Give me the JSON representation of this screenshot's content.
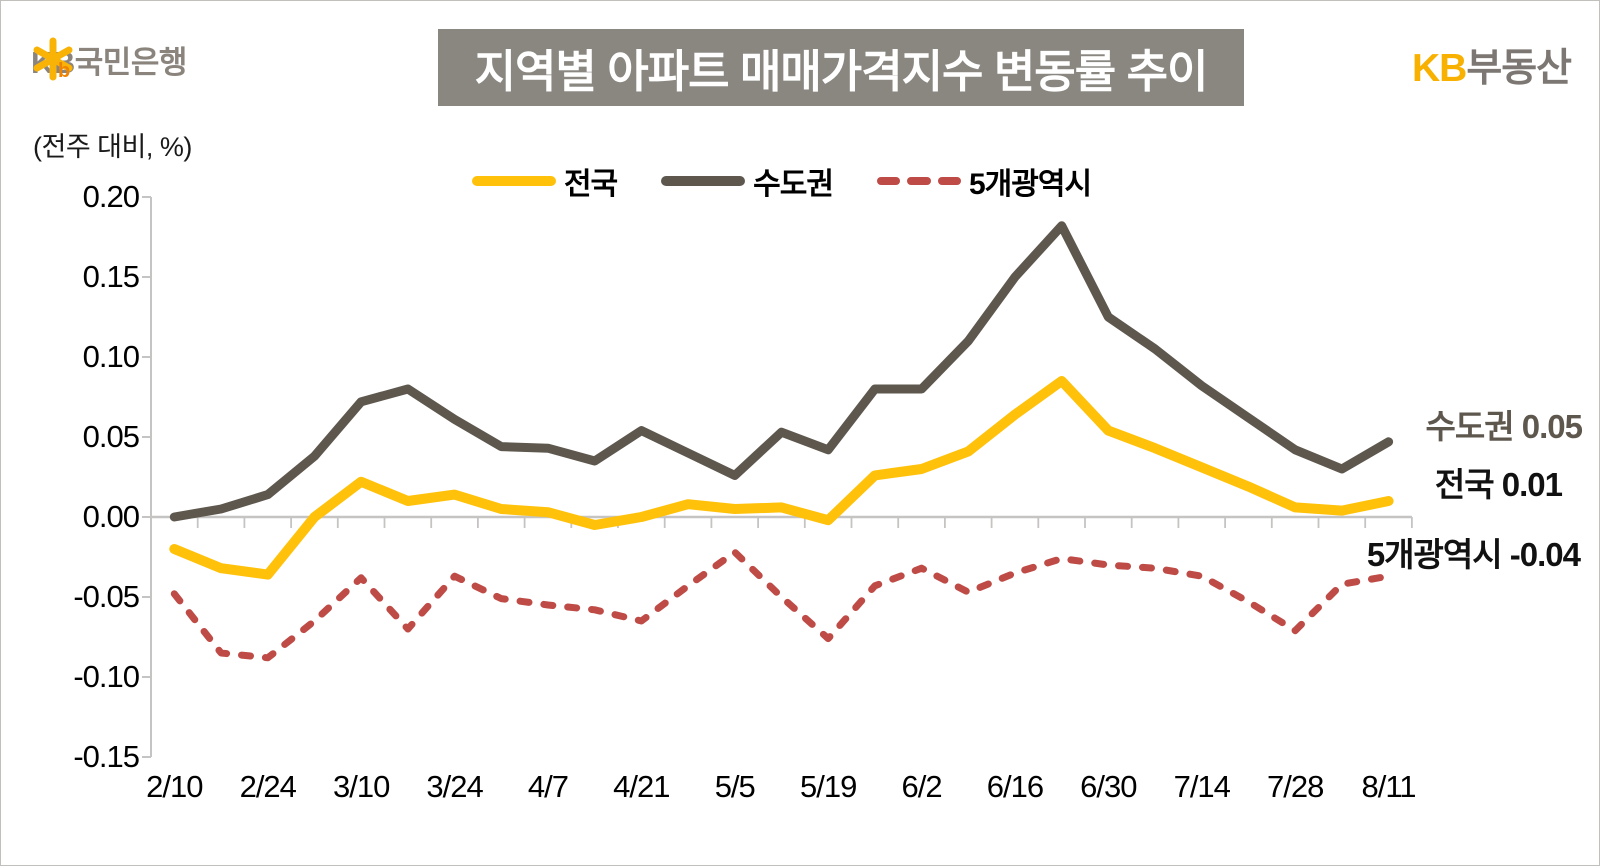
{
  "page": {
    "background": "#ffffff",
    "border_color": "#c2c0bd"
  },
  "header": {
    "bank_logo": {
      "icon": "kb-star-icon",
      "star_color": "#f9b306",
      "b_color": "#ef8200",
      "text": "KB국민은행",
      "text_color": "#8a847d"
    },
    "title": {
      "text": "지역별 아파트 매매가격지수 변동률 추이",
      "bg": "#8a8680",
      "color": "#ffffff"
    },
    "brand_logo": {
      "kb_text": "KB",
      "kb_color": "#f8b100",
      "suffix_text": "부동산",
      "suffix_color": "#7c7772"
    }
  },
  "chart": {
    "unit_label": "(전주 대비, %)",
    "axis_color": "#c6c4c2",
    "legend": [
      {
        "label": "전국",
        "color": "#ffc10a",
        "style": "solid"
      },
      {
        "label": "수도권",
        "color": "#5e574e",
        "style": "solid"
      },
      {
        "label": "5개광역시",
        "color": "#be4b46",
        "style": "dashed"
      }
    ]
  },
  "chart_data": {
    "type": "line",
    "title": "지역별 아파트 매매가격지수 변동률 추이",
    "subtitle_unit": "(전주 대비, %)",
    "ylabel": "",
    "xlabel": "",
    "ylim": [
      -0.15,
      0.2
    ],
    "grid": "zero-line-only",
    "legend_position": "top-center",
    "y_tick_labels": [
      "0.20",
      "0.15",
      "0.10",
      "0.05",
      "0.00",
      "-0.05",
      "-0.10",
      "-0.15"
    ],
    "y_tick_values": [
      0.2,
      0.15,
      0.1,
      0.05,
      0.0,
      -0.05,
      -0.1,
      -0.15
    ],
    "x_tick_labels": [
      "2/10",
      "2/24",
      "3/10",
      "3/24",
      "4/7",
      "4/21",
      "5/5",
      "5/19",
      "6/2",
      "6/16",
      "6/30",
      "7/14",
      "7/28",
      "8/11"
    ],
    "points_per_x_tick": 2,
    "n_points": 27,
    "series": [
      {
        "name": "전국",
        "color": "#ffc10a",
        "dash": false,
        "width": 10,
        "values": [
          -0.02,
          -0.032,
          -0.036,
          0.0,
          0.022,
          0.01,
          0.014,
          0.005,
          0.003,
          -0.005,
          0.0,
          0.008,
          0.005,
          0.006,
          -0.002,
          0.026,
          0.03,
          0.041,
          0.064,
          0.085,
          0.054,
          0.043,
          0.031,
          0.019,
          0.006,
          0.004,
          0.01
        ]
      },
      {
        "name": "수도권",
        "color": "#5e574e",
        "dash": false,
        "width": 9,
        "values": [
          0.0,
          0.005,
          0.014,
          0.038,
          0.072,
          0.08,
          0.061,
          0.044,
          0.043,
          0.035,
          0.054,
          0.04,
          0.026,
          0.053,
          0.042,
          0.08,
          0.08,
          0.11,
          0.15,
          0.182,
          0.125,
          0.105,
          0.082,
          0.062,
          0.042,
          0.03,
          0.047
        ]
      },
      {
        "name": "5개광역시",
        "color": "#be4b46",
        "dash": true,
        "width": 7,
        "values": [
          -0.048,
          -0.085,
          -0.088,
          -0.065,
          -0.038,
          -0.07,
          -0.037,
          -0.051,
          -0.055,
          -0.058,
          -0.065,
          -0.043,
          -0.022,
          -0.05,
          -0.076,
          -0.043,
          -0.032,
          -0.047,
          -0.035,
          -0.026,
          -0.03,
          -0.032,
          -0.037,
          -0.053,
          -0.071,
          -0.042,
          -0.037
        ]
      }
    ],
    "end_labels": [
      {
        "text": "수도권 0.05",
        "color": "#5e574e"
      },
      {
        "text": "전국 0.01",
        "color": "#111111"
      },
      {
        "text": "5개광역시 -0.04",
        "color": "#111111"
      }
    ]
  }
}
